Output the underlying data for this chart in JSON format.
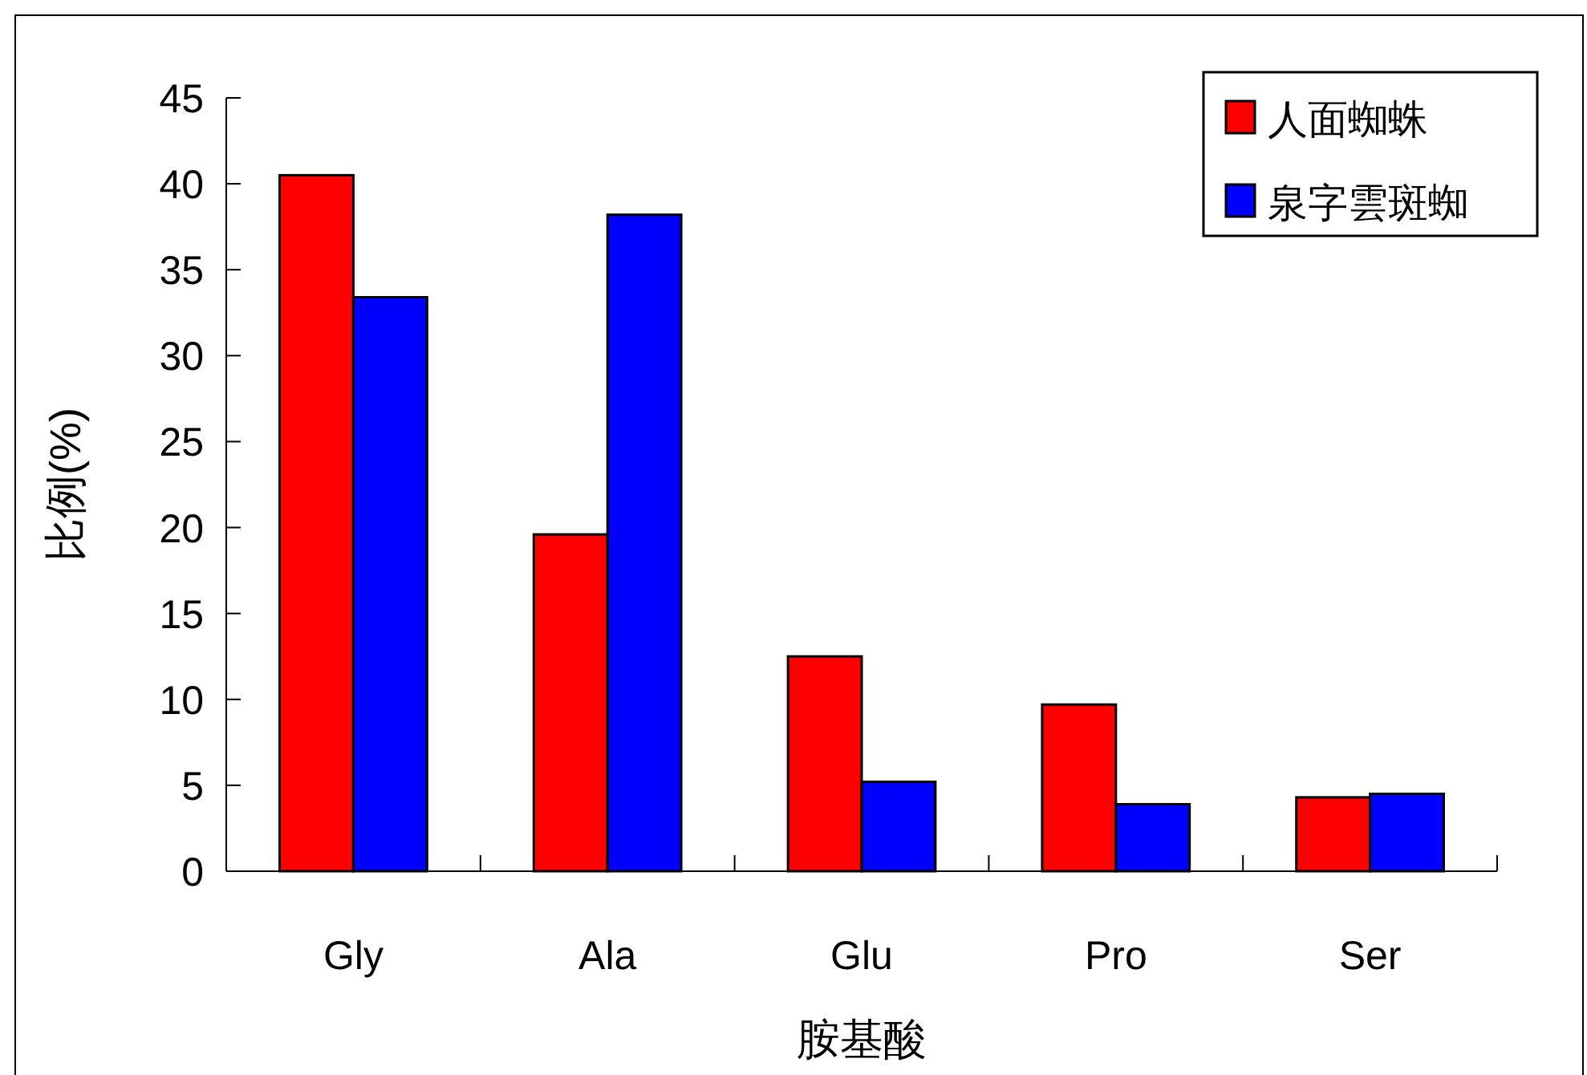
{
  "chart_data": {
    "type": "bar",
    "xlabel": "胺基酸",
    "ylabel": "比例(%)",
    "categories": [
      "Gly",
      "Ala",
      "Glu",
      "Pro",
      "Ser"
    ],
    "series": [
      {
        "name": "人面蜘蛛",
        "color": "#ff0000",
        "values": [
          40.5,
          19.6,
          12.5,
          9.7,
          4.3
        ]
      },
      {
        "name": "泉字雲斑蜘",
        "color": "#0000ff",
        "values": [
          33.4,
          38.2,
          5.2,
          3.9,
          4.5
        ]
      }
    ],
    "ylim": [
      0,
      45
    ],
    "yticks": [
      0,
      5,
      10,
      15,
      20,
      25,
      30,
      35,
      40,
      45
    ],
    "legend": "top right"
  }
}
